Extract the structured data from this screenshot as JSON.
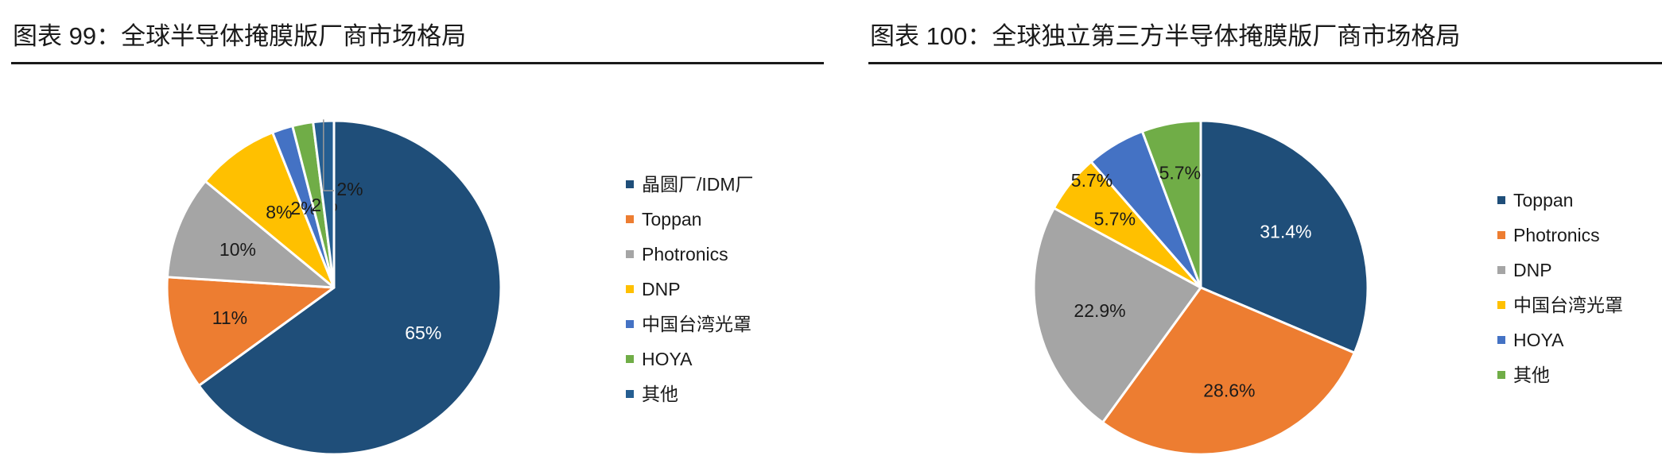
{
  "chart_data": [
    {
      "type": "pie",
      "title": "图表 99：全球半导体掩膜版厂商市场格局",
      "legend_position": "right",
      "slices": [
        {
          "name": "晶圆厂/IDM厂",
          "value": 65,
          "label": "65%",
          "color": "#1F4E79"
        },
        {
          "name": "Toppan",
          "value": 11,
          "label": "11%",
          "color": "#ED7D31"
        },
        {
          "name": "Photronics",
          "value": 10,
          "label": "10%",
          "color": "#A5A5A5"
        },
        {
          "name": "DNP",
          "value": 8,
          "label": "8%",
          "color": "#FFC000"
        },
        {
          "name": "中国台湾光罩",
          "value": 2,
          "label": "2%",
          "color": "#4472C4"
        },
        {
          "name": "HOYA",
          "value": 2,
          "label": "2%",
          "color": "#70AD47"
        },
        {
          "name": "其他",
          "value": 2,
          "label": "2%",
          "color": "#255E91"
        }
      ]
    },
    {
      "type": "pie",
      "title": "图表 100：全球独立第三方半导体掩膜版厂商市场格局",
      "legend_position": "right",
      "slices": [
        {
          "name": "Toppan",
          "value": 31.4,
          "label": "31.4%",
          "color": "#1F4E79"
        },
        {
          "name": "Photronics",
          "value": 28.6,
          "label": "28.6%",
          "color": "#ED7D31"
        },
        {
          "name": "DNP",
          "value": 22.9,
          "label": "22.9%",
          "color": "#A5A5A5"
        },
        {
          "name": "中国台湾光罩",
          "value": 5.7,
          "label": "5.7%",
          "color": "#FFC000"
        },
        {
          "name": "HOYA",
          "value": 5.7,
          "label": "5.7%",
          "color": "#4472C4"
        },
        {
          "name": "其他",
          "value": 5.7,
          "label": "5.7%",
          "color": "#70AD47"
        }
      ]
    }
  ]
}
